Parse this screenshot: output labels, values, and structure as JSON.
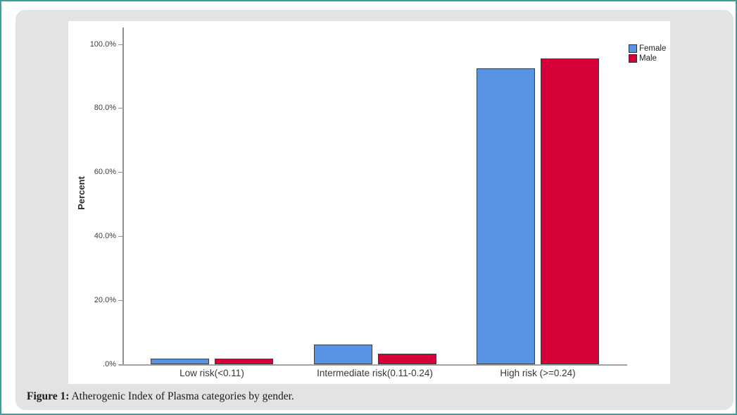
{
  "figure": {
    "caption_prefix": "Figure 1:",
    "caption_text": " Atherogenic Index of Plasma categories by gender."
  },
  "colors": {
    "frame_teal": "#35a399",
    "panel_gray": "#e3e3e3",
    "chart_background": "#ffffff",
    "female_blue": "#5b93e3",
    "male_red": "#d50038",
    "bar_border": "#3c3c3c",
    "axis_gray": "#8f8f8f"
  },
  "chart_data": {
    "type": "bar",
    "title": "",
    "categories": [
      "Low risk(<0.11)",
      "Intermediate risk(0.11-0.24)",
      "High risk (>=0.24)"
    ],
    "series": [
      {
        "name": "Female",
        "color": "#5b93e3",
        "values": [
          1.8,
          6.1,
          92.3
        ]
      },
      {
        "name": "Male",
        "color": "#d50038",
        "values": [
          1.8,
          3.4,
          95.4
        ]
      }
    ],
    "xlabel": "",
    "ylabel": "Percent",
    "y_ticks": [
      "100.0%",
      "80.0%",
      "60.0%",
      "40.0%",
      "20.0%",
      ".0%"
    ],
    "y_tick_values": [
      100,
      80,
      60,
      40,
      20,
      0
    ],
    "ylim": [
      0,
      105
    ],
    "grid": false,
    "legend": {
      "position": "top-right",
      "entries": [
        "Female",
        "Male"
      ]
    }
  }
}
